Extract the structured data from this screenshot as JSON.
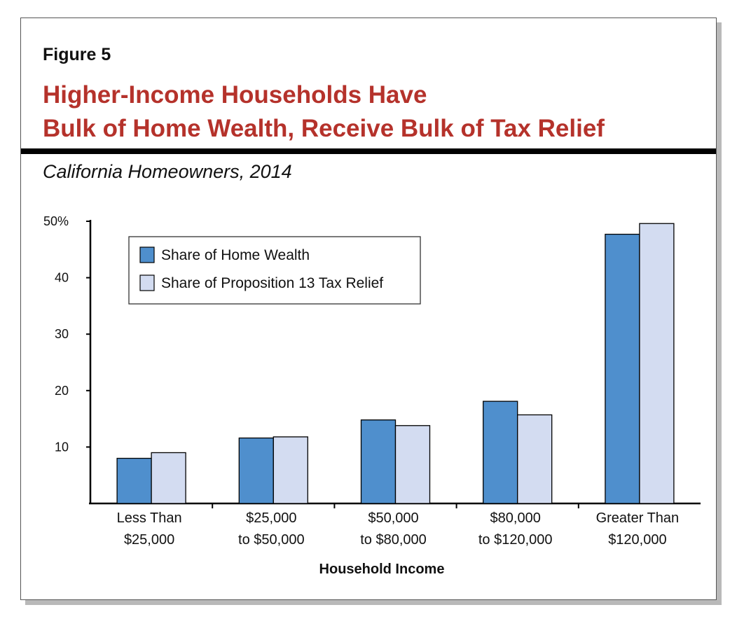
{
  "figure_label": "Figure 5",
  "title_lines": [
    "Higher-Income Households Have",
    "Bulk of Home Wealth, Receive Bulk of Tax Relief"
  ],
  "subtitle": "California Homeowners, 2014",
  "colors": {
    "title": "#b5322b",
    "home_wealth": "#4f8fcd",
    "tax_relief": "#d3dcf1",
    "axis": "#000000"
  },
  "chart_data": {
    "type": "bar",
    "categories": [
      [
        "Less Than",
        "$25,000"
      ],
      [
        "$25,000",
        "to $50,000"
      ],
      [
        "$50,000",
        "to $80,000"
      ],
      [
        "$80,000",
        "to $120,000"
      ],
      [
        "Greater Than",
        "$120,000"
      ]
    ],
    "series": [
      {
        "name": "Share of Home Wealth",
        "values": [
          8,
          11.6,
          14.8,
          18.1,
          47.7
        ]
      },
      {
        "name": "Share of Proposition 13 Tax Relief",
        "values": [
          9,
          11.8,
          13.8,
          15.7,
          49.6
        ]
      }
    ],
    "xlabel": "Household Income",
    "ylabel": "",
    "ylim": [
      0,
      50
    ],
    "yticks": [
      10,
      20,
      30,
      40,
      50
    ],
    "ytick_labels": [
      "10",
      "20",
      "30",
      "40",
      "50%"
    ],
    "grid": false,
    "legend_position": "top-left"
  }
}
